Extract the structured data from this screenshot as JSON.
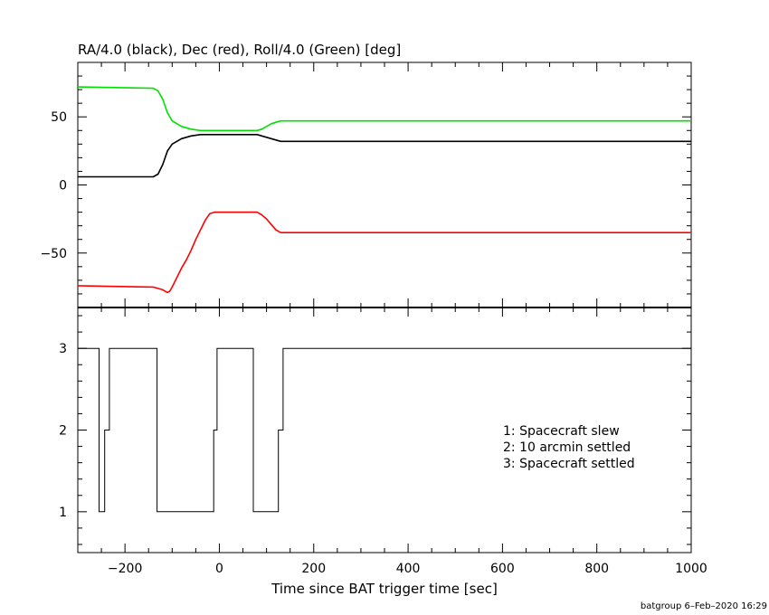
{
  "chart_data": [
    {
      "type": "line",
      "title": "RA/4.0 (black), Dec (red), Roll/4.0 (Green) [deg]",
      "xlim": [
        -300,
        1000
      ],
      "ylim": [
        -90,
        90
      ],
      "yticks": [
        -50,
        0,
        50
      ],
      "grid": false,
      "series": [
        {
          "color": "#000000",
          "points": [
            [
              -300,
              6
            ],
            [
              -140,
              6
            ],
            [
              -130,
              8
            ],
            [
              -120,
              15
            ],
            [
              -110,
              25
            ],
            [
              -100,
              30
            ],
            [
              -80,
              34
            ],
            [
              -60,
              36
            ],
            [
              -40,
              37
            ],
            [
              -20,
              37
            ],
            [
              60,
              37
            ],
            [
              80,
              37
            ],
            [
              90,
              36
            ],
            [
              100,
              35
            ],
            [
              110,
              34
            ],
            [
              120,
              33
            ],
            [
              130,
              32
            ],
            [
              1000,
              32
            ]
          ]
        },
        {
          "color": "#ff0000",
          "points": [
            [
              -300,
              -74
            ],
            [
              -140,
              -75
            ],
            [
              -130,
              -76
            ],
            [
              -120,
              -77
            ],
            [
              -110,
              -79
            ],
            [
              -105,
              -78
            ],
            [
              -100,
              -75
            ],
            [
              -90,
              -68
            ],
            [
              -80,
              -61
            ],
            [
              -70,
              -55
            ],
            [
              -60,
              -48
            ],
            [
              -50,
              -40
            ],
            [
              -40,
              -33
            ],
            [
              -30,
              -26
            ],
            [
              -20,
              -21
            ],
            [
              -10,
              -20
            ],
            [
              60,
              -20
            ],
            [
              80,
              -20
            ],
            [
              90,
              -22
            ],
            [
              100,
              -25
            ],
            [
              110,
              -29
            ],
            [
              120,
              -33
            ],
            [
              130,
              -35
            ],
            [
              1000,
              -35
            ]
          ]
        },
        {
          "color": "#00e000",
          "points": [
            [
              -300,
              72
            ],
            [
              -140,
              71
            ],
            [
              -130,
              69
            ],
            [
              -120,
              63
            ],
            [
              -110,
              53
            ],
            [
              -100,
              47
            ],
            [
              -80,
              43
            ],
            [
              -60,
              41
            ],
            [
              -40,
              40
            ],
            [
              -20,
              40
            ],
            [
              70,
              40
            ],
            [
              80,
              40
            ],
            [
              90,
              41
            ],
            [
              100,
              43
            ],
            [
              110,
              45
            ],
            [
              120,
              46
            ],
            [
              130,
              47
            ],
            [
              1000,
              47
            ]
          ]
        }
      ]
    },
    {
      "type": "line",
      "xlabel": "Time since BAT trigger time [sec]",
      "xlim": [
        -300,
        1000
      ],
      "ylim": [
        0.5,
        3.5
      ],
      "yticks": [
        1,
        2,
        3
      ],
      "xticks": [
        -200,
        0,
        200,
        400,
        600,
        800,
        1000
      ],
      "xtick_labels": [
        "−200",
        "0",
        "200",
        "400",
        "600",
        "800",
        "1000"
      ],
      "grid": false,
      "series": [
        {
          "color": "#000000",
          "step": true,
          "points": [
            [
              -300,
              3
            ],
            [
              -255,
              3
            ],
            [
              -255,
              1
            ],
            [
              -243,
              1
            ],
            [
              -243,
              2
            ],
            [
              -233,
              2
            ],
            [
              -233,
              3
            ],
            [
              -132,
              3
            ],
            [
              -132,
              1
            ],
            [
              -12,
              1
            ],
            [
              -12,
              2
            ],
            [
              -5,
              2
            ],
            [
              -5,
              3
            ],
            [
              72,
              3
            ],
            [
              72,
              1
            ],
            [
              125,
              1
            ],
            [
              125,
              2
            ],
            [
              135,
              2
            ],
            [
              135,
              3
            ],
            [
              1000,
              3
            ]
          ]
        }
      ],
      "legend_position": "right",
      "legend": [
        "1: Spacecraft slew",
        "2: 10 arcmin settled",
        "3: Spacecraft settled"
      ]
    }
  ],
  "footer": {
    "credit": "batgroup  6–Feb–2020 16:29"
  }
}
